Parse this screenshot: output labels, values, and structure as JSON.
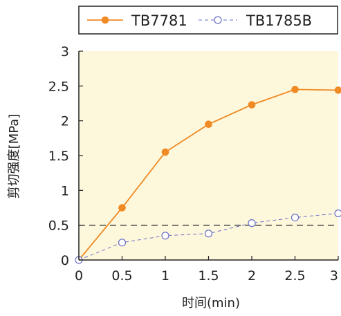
{
  "chart_data": {
    "type": "line",
    "xlabel": "时间(min)",
    "ylabel": "剪切强度[MPa]",
    "xlim": [
      0,
      3
    ],
    "ylim": [
      0,
      3
    ],
    "x_ticks": [
      "0",
      "0.5",
      "1",
      "1.5",
      "2",
      "2.5",
      "3"
    ],
    "y_ticks": [
      "0",
      "0.5",
      "1",
      "1.5",
      "2",
      "2.5",
      "3"
    ],
    "legend_position": "top",
    "plot_background": "#fdf8dc",
    "series": [
      {
        "name": "TB7781",
        "color": "#f08a24",
        "style": "solid",
        "marker": "filled-circle",
        "x": [
          0,
          0.5,
          1,
          1.5,
          2,
          2.5,
          3
        ],
        "y": [
          0,
          0.75,
          1.55,
          1.95,
          2.23,
          2.45,
          2.44
        ]
      },
      {
        "name": "TB1785B",
        "color": "#6a6fc4",
        "style": "dashed",
        "marker": "open-circle",
        "x": [
          0,
          0.5,
          1,
          1.5,
          2,
          2.5,
          3
        ],
        "y": [
          0,
          0.25,
          0.35,
          0.38,
          0.53,
          0.61,
          0.67
        ]
      }
    ],
    "reference_line": {
      "y": 0.5,
      "color": "#333333",
      "style": "dashed"
    }
  }
}
